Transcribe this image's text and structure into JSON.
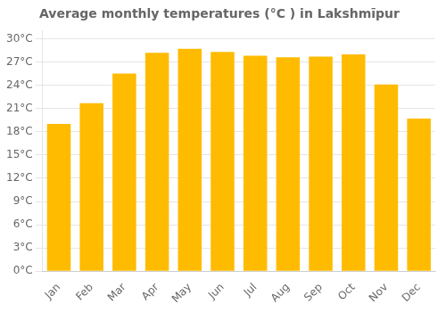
{
  "chart_data": {
    "type": "bar",
    "title": "Average monthly temperatures (°C ) in Lakshmīpur",
    "categories": [
      "Jan",
      "Feb",
      "Mar",
      "Apr",
      "May",
      "Jun",
      "Jul",
      "Aug",
      "Sep",
      "Oct",
      "Nov",
      "Dec"
    ],
    "values": [
      19.0,
      21.7,
      25.5,
      28.2,
      28.7,
      28.3,
      27.8,
      27.6,
      27.7,
      28.0,
      24.1,
      19.7
    ],
    "color": "#FFBB00",
    "ylim": [
      0,
      31
    ],
    "yticks": [
      {
        "value": 0,
        "label": "0°C"
      },
      {
        "value": 3,
        "label": "3°C"
      },
      {
        "value": 6,
        "label": "6°C"
      },
      {
        "value": 9,
        "label": "9°C"
      },
      {
        "value": 12,
        "label": "12°C"
      },
      {
        "value": 15,
        "label": "15°C"
      },
      {
        "value": 18,
        "label": "18°C"
      },
      {
        "value": 21,
        "label": "21°C"
      },
      {
        "value": 24,
        "label": "24°C"
      },
      {
        "value": 27,
        "label": "27°C"
      },
      {
        "value": 30,
        "label": "30°C"
      }
    ],
    "grid": true
  }
}
